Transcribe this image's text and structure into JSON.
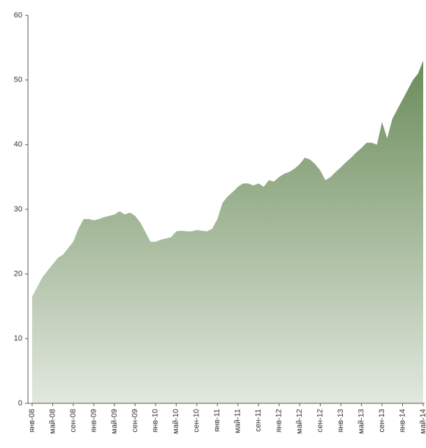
{
  "chart_data": {
    "type": "area",
    "categories": [
      "янв-08",
      null,
      null,
      null,
      "май-08",
      null,
      null,
      null,
      "сен-08",
      null,
      null,
      null,
      "янв-09",
      null,
      null,
      null,
      "май-09",
      null,
      null,
      null,
      "сен-09",
      null,
      null,
      null,
      "янв-10",
      null,
      null,
      null,
      "май-10",
      null,
      null,
      null,
      "сен-10",
      null,
      null,
      null,
      "янв-11",
      null,
      null,
      null,
      "май-11",
      null,
      null,
      null,
      "сен-11",
      null,
      null,
      null,
      "янв-12",
      null,
      null,
      null,
      "май-12",
      null,
      null,
      null,
      "сен-12",
      null,
      null,
      null,
      "янв-13",
      null,
      null,
      null,
      "май-13",
      null,
      null,
      null,
      "сен-13",
      null,
      null,
      null,
      "янв-14",
      null,
      null,
      null,
      "май-14"
    ],
    "values": [
      16.5,
      18,
      19.5,
      20.5,
      21.5,
      22.5,
      23,
      24,
      25,
      27,
      28.5,
      28.5,
      28.3,
      28.5,
      28.8,
      29,
      29.2,
      29.7,
      29.2,
      29.5,
      29,
      28,
      26.5,
      25,
      25,
      25.3,
      25.5,
      25.7,
      26.6,
      26.7,
      26.6,
      26.6,
      26.8,
      26.7,
      26.6,
      27,
      28.5,
      31,
      32,
      32.7,
      33.5,
      34,
      34,
      33.7,
      34,
      33.5,
      34.5,
      34.3,
      35,
      35.5,
      35.8,
      36.3,
      37,
      38,
      37.7,
      37,
      36,
      34.5,
      35,
      35.8,
      36.5,
      37.3,
      38,
      38.8,
      39.5,
      40.3,
      40.3,
      40,
      43.5,
      41,
      44,
      45.5,
      47,
      48.5,
      50,
      51,
      53
    ],
    "color": "#6b8c5a",
    "ylim": [
      0,
      60
    ],
    "yticks": [
      0,
      10,
      20,
      30,
      40,
      50,
      60
    ],
    "grid": false
  }
}
